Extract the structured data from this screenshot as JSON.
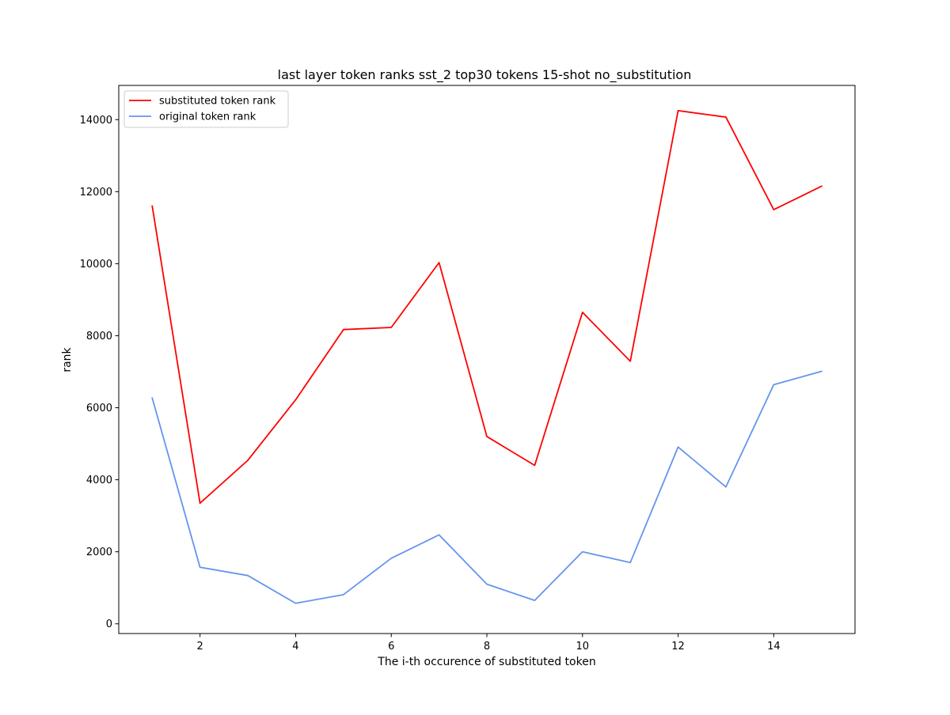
{
  "chart_data": {
    "type": "line",
    "title": "last layer token ranks sst_2 top30 tokens 15-shot no_substitution",
    "xlabel": "The i-th occurence of substituted token",
    "ylabel": "rank",
    "x": [
      1,
      2,
      3,
      4,
      5,
      6,
      7,
      8,
      9,
      10,
      11,
      12,
      13,
      14,
      15
    ],
    "xlim": [
      0.3,
      15.7
    ],
    "ylim": [
      -270,
      14950
    ],
    "xticks": [
      2,
      4,
      6,
      8,
      10,
      12,
      14
    ],
    "yticks": [
      0,
      2000,
      4000,
      6000,
      8000,
      10000,
      12000,
      14000
    ],
    "grid": false,
    "legend_position": "top-left",
    "series": [
      {
        "name": "substituted token rank",
        "color": "#ff0000",
        "values": [
          11600,
          3350,
          4540,
          6220,
          8170,
          8230,
          10030,
          5200,
          4400,
          8650,
          7290,
          14250,
          14070,
          11500,
          12150
        ]
      },
      {
        "name": "original token rank",
        "color": "#6495ed",
        "values": [
          6270,
          1570,
          1340,
          570,
          810,
          1820,
          2470,
          1100,
          650,
          2000,
          1700,
          4910,
          3800,
          6640,
          7010
        ]
      }
    ]
  }
}
